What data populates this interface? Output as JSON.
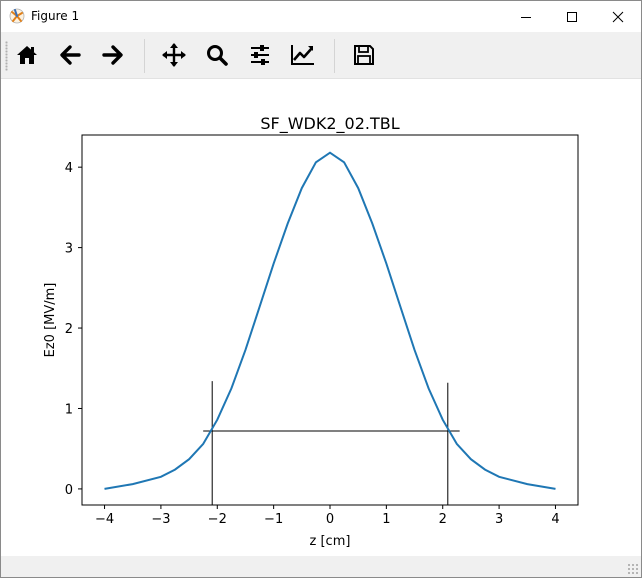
{
  "window": {
    "title": "Figure 1"
  },
  "toolbar": {
    "buttons": [
      {
        "name": "home-button",
        "icon": "home-icon"
      },
      {
        "name": "back-button",
        "icon": "arrow-left-icon"
      },
      {
        "name": "forward-button",
        "icon": "arrow-right-icon"
      },
      {
        "name": "pan-button",
        "icon": "move-icon"
      },
      {
        "name": "zoom-button",
        "icon": "magnifier-icon"
      },
      {
        "name": "subplots-button",
        "icon": "sliders-icon"
      },
      {
        "name": "edit-axes-button",
        "icon": "chart-line-icon"
      },
      {
        "name": "save-button",
        "icon": "floppy-disk-icon"
      }
    ]
  },
  "chart_data": {
    "type": "line",
    "title": "SF_WDK2_02.TBL",
    "xlabel": "z [cm]",
    "ylabel": "Ez0 [MV/m]",
    "xlim": [
      -4.4,
      4.4
    ],
    "ylim": [
      -0.2,
      4.4
    ],
    "xticks": [
      -4,
      -3,
      -2,
      -1,
      0,
      1,
      2,
      3,
      4
    ],
    "xtick_labels": [
      "−4",
      "−3",
      "−2",
      "−1",
      "0",
      "1",
      "2",
      "3",
      "4"
    ],
    "yticks": [
      0,
      1,
      2,
      3,
      4
    ],
    "ytick_labels": [
      "0",
      "1",
      "2",
      "3",
      "4"
    ],
    "grid": false,
    "line_color": "#1f77b4",
    "series": [
      {
        "x": [
          -4.0,
          -3.5,
          -3.0,
          -2.75,
          -2.5,
          -2.25,
          -2.0,
          -1.75,
          -1.5,
          -1.25,
          -1.0,
          -0.75,
          -0.5,
          -0.25,
          0.0,
          0.25,
          0.5,
          0.75,
          1.0,
          1.25,
          1.5,
          1.75,
          2.0,
          2.25,
          2.5,
          2.75,
          3.0,
          3.5,
          4.0
        ],
        "y": [
          0.0,
          0.06,
          0.15,
          0.24,
          0.37,
          0.56,
          0.86,
          1.25,
          1.73,
          2.26,
          2.8,
          3.3,
          3.74,
          4.06,
          4.18,
          4.06,
          3.74,
          3.3,
          2.8,
          2.26,
          1.73,
          1.25,
          0.86,
          0.56,
          0.37,
          0.24,
          0.15,
          0.06,
          0.0
        ]
      }
    ],
    "marker_lines": [
      {
        "type": "vertical",
        "x": -2.09,
        "y_from": -0.2,
        "y_to": 1.34
      },
      {
        "type": "vertical",
        "x": 2.09,
        "y_from": -0.2,
        "y_to": 1.32
      },
      {
        "type": "horizontal",
        "y": 0.72,
        "x_from": -2.25,
        "x_to": 2.3
      }
    ],
    "marker_color": "#000000"
  }
}
